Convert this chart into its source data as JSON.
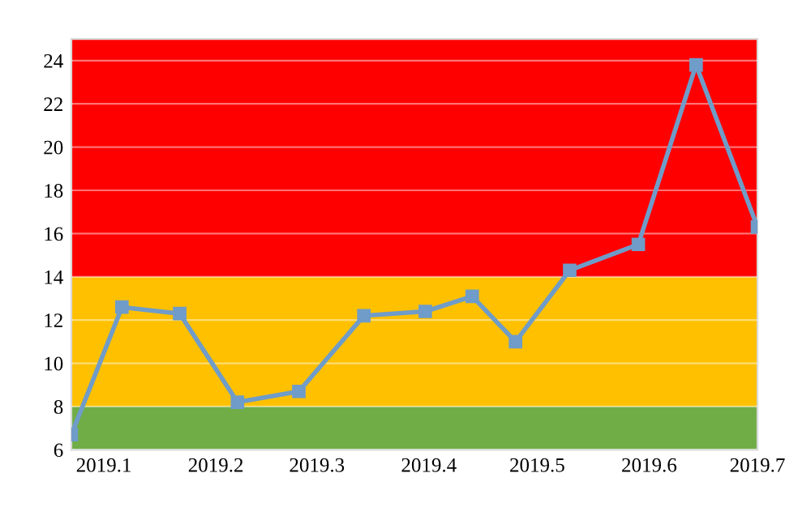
{
  "chart_data": {
    "type": "line",
    "x": [
      "2018-12-23",
      "2019-01-06",
      "2019-01-22",
      "2019-02-07",
      "2019-02-24",
      "2019-03-14",
      "2019-03-31",
      "2019-04-13",
      "2019-04-25",
      "2019-05-10",
      "2019-05-29",
      "2019-06-14",
      "2019-07-01"
    ],
    "series": [
      {
        "color": "#6f9cc8",
        "values": [
          6.7,
          12.6,
          12.3,
          8.2,
          8.7,
          12.2,
          12.4,
          13.1,
          11.0,
          14.3,
          15.5,
          23.8,
          16.3
        ]
      }
    ],
    "xlim": [
      "2018-12-23",
      "2019-07-01"
    ],
    "xticks": [
      {
        "value": "2019-01",
        "label": "2019.1"
      },
      {
        "value": "2019-02",
        "label": "2019.2"
      },
      {
        "value": "2019-03",
        "label": "2019.3"
      },
      {
        "value": "2019-04",
        "label": "2019.4"
      },
      {
        "value": "2019-05",
        "label": "2019.5"
      },
      {
        "value": "2019-06",
        "label": "2019.6"
      },
      {
        "value": "2019-07",
        "label": "2019.7"
      }
    ],
    "ylim": [
      6,
      25
    ],
    "yticks": [
      6,
      8,
      10,
      12,
      14,
      16,
      18,
      20,
      22,
      24
    ],
    "bands": [
      {
        "axis": "y",
        "from": 6,
        "to": 8,
        "color": "#70ad47"
      },
      {
        "axis": "y",
        "from": 8,
        "to": 14,
        "color": "#ffc000"
      },
      {
        "axis": "y",
        "from": 14,
        "to": 25,
        "color": "#ff0000"
      }
    ],
    "grid": "y",
    "marker": "square",
    "line_style": "solid",
    "legend": false
  }
}
